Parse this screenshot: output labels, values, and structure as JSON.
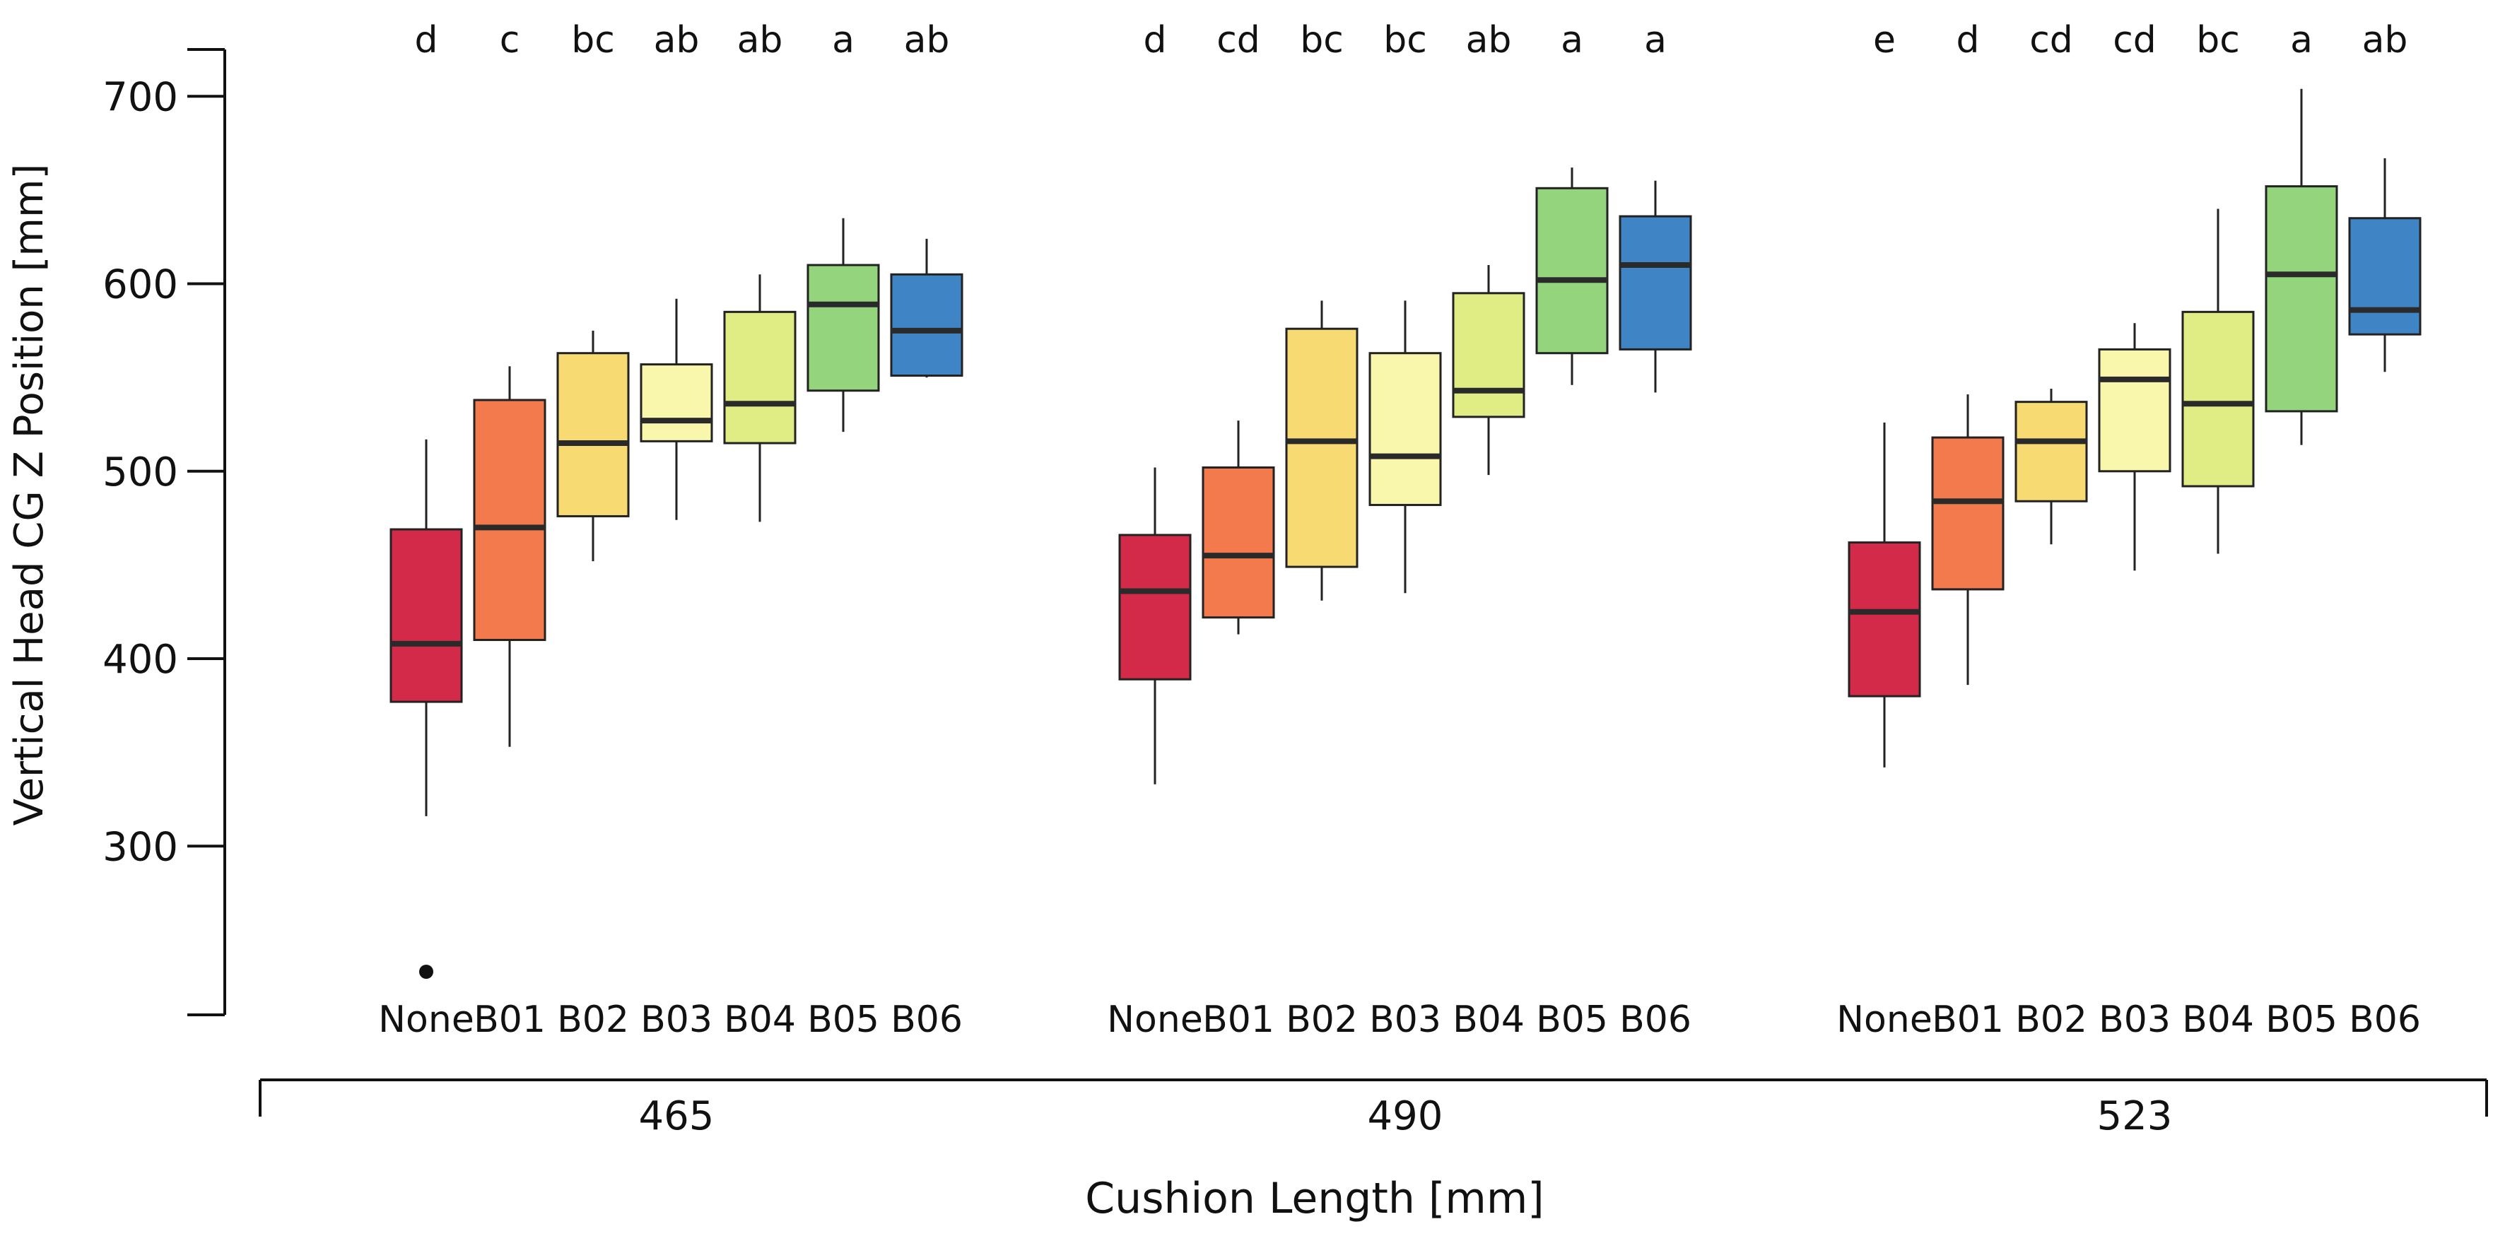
{
  "chart_data": {
    "type": "boxplot",
    "ylabel": "Vertical Head CG Z Position [mm]",
    "xlabel": "Cushion Length [mm]",
    "ylim": [
      210,
      725
    ],
    "yticks": [
      300,
      400,
      500,
      600,
      700
    ],
    "grid": false,
    "legend": "none",
    "categories": [
      "None",
      "B01",
      "B02",
      "B03",
      "B04",
      "B05",
      "B06"
    ],
    "colors": {
      "None": "#d42a4a",
      "B01": "#f27a4c",
      "B02": "#f7db72",
      "B03": "#f9f7ab",
      "B04": "#e0ed84",
      "B05": "#93d47c",
      "B06": "#3f85c6"
    },
    "groups": [
      {
        "label": "465",
        "letters": [
          "d",
          "c",
          "bc",
          "ab",
          "ab",
          "a",
          "ab"
        ],
        "boxes": [
          {
            "category": "None",
            "min": 316,
            "q1": 377,
            "median": 408,
            "q3": 469,
            "max": 517,
            "outliers": [
              233
            ]
          },
          {
            "category": "B01",
            "min": 353,
            "q1": 410,
            "median": 470,
            "q3": 538,
            "max": 556,
            "outliers": []
          },
          {
            "category": "B02",
            "min": 452,
            "q1": 476,
            "median": 515,
            "q3": 563,
            "max": 575,
            "outliers": []
          },
          {
            "category": "B03",
            "min": 474,
            "q1": 516,
            "median": 527,
            "q3": 557,
            "max": 592,
            "outliers": []
          },
          {
            "category": "B04",
            "min": 473,
            "q1": 515,
            "median": 536,
            "q3": 585,
            "max": 605,
            "outliers": []
          },
          {
            "category": "B05",
            "min": 521,
            "q1": 543,
            "median": 589,
            "q3": 610,
            "max": 635,
            "outliers": []
          },
          {
            "category": "B06",
            "min": 550,
            "q1": 551,
            "median": 575,
            "q3": 605,
            "max": 624,
            "outliers": []
          }
        ]
      },
      {
        "label": "490",
        "letters": [
          "d",
          "cd",
          "bc",
          "bc",
          "ab",
          "a",
          "a"
        ],
        "boxes": [
          {
            "category": "None",
            "min": 333,
            "q1": 389,
            "median": 436,
            "q3": 466,
            "max": 502,
            "outliers": []
          },
          {
            "category": "B01",
            "min": 413,
            "q1": 422,
            "median": 455,
            "q3": 502,
            "max": 527,
            "outliers": []
          },
          {
            "category": "B02",
            "min": 431,
            "q1": 449,
            "median": 516,
            "q3": 576,
            "max": 591,
            "outliers": []
          },
          {
            "category": "B03",
            "min": 435,
            "q1": 482,
            "median": 508,
            "q3": 563,
            "max": 591,
            "outliers": []
          },
          {
            "category": "B04",
            "min": 498,
            "q1": 529,
            "median": 543,
            "q3": 595,
            "max": 610,
            "outliers": []
          },
          {
            "category": "B05",
            "min": 546,
            "q1": 563,
            "median": 602,
            "q3": 651,
            "max": 662,
            "outliers": []
          },
          {
            "category": "B06",
            "min": 542,
            "q1": 565,
            "median": 610,
            "q3": 636,
            "max": 655,
            "outliers": []
          }
        ]
      },
      {
        "label": "523",
        "letters": [
          "e",
          "d",
          "cd",
          "cd",
          "bc",
          "a",
          "ab"
        ],
        "boxes": [
          {
            "category": "None",
            "min": 342,
            "q1": 380,
            "median": 425,
            "q3": 462,
            "max": 526,
            "outliers": []
          },
          {
            "category": "B01",
            "min": 386,
            "q1": 437,
            "median": 484,
            "q3": 518,
            "max": 541,
            "outliers": []
          },
          {
            "category": "B02",
            "min": 461,
            "q1": 484,
            "median": 516,
            "q3": 537,
            "max": 544,
            "outliers": []
          },
          {
            "category": "B03",
            "min": 447,
            "q1": 500,
            "median": 549,
            "q3": 565,
            "max": 579,
            "outliers": []
          },
          {
            "category": "B04",
            "min": 456,
            "q1": 492,
            "median": 536,
            "q3": 585,
            "max": 640,
            "outliers": []
          },
          {
            "category": "B05",
            "min": 514,
            "q1": 532,
            "median": 605,
            "q3": 652,
            "max": 704,
            "outliers": []
          },
          {
            "category": "B06",
            "min": 553,
            "q1": 573,
            "median": 586,
            "q3": 635,
            "max": 667,
            "outliers": []
          }
        ]
      }
    ]
  }
}
